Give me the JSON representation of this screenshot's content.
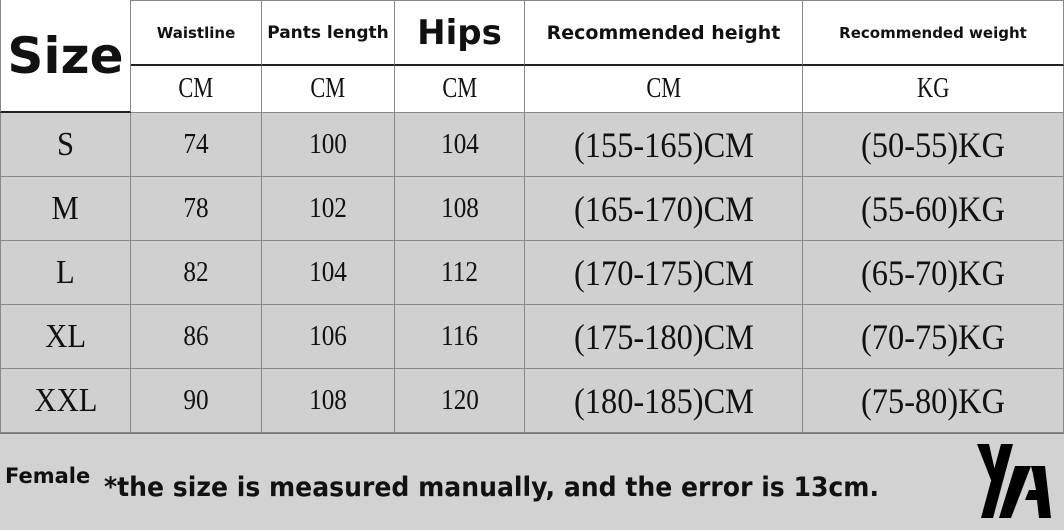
{
  "table": {
    "size_header": "Size",
    "headers": [
      "Waistline",
      "Pants length",
      "Hips",
      "Recommended height",
      "Recommended weight"
    ],
    "units": [
      "CM",
      "CM",
      "CM",
      "CM",
      "KG"
    ],
    "rows": [
      {
        "size": "S",
        "waistline": "74",
        "pants_length": "100",
        "hips": "104",
        "height": "(155-165)CM",
        "weight": "(50-55)KG"
      },
      {
        "size": "M",
        "waistline": "78",
        "pants_length": "102",
        "hips": "108",
        "height": "(165-170)CM",
        "weight": "(55-60)KG"
      },
      {
        "size": "L",
        "waistline": "82",
        "pants_length": "104",
        "hips": "112",
        "height": "(170-175)CM",
        "weight": "(65-70)KG"
      },
      {
        "size": "XL",
        "waistline": "86",
        "pants_length": "106",
        "hips": "116",
        "height": "(175-180)CM",
        "weight": "(70-75)KG"
      },
      {
        "size": "XXL",
        "waistline": "90",
        "pants_length": "108",
        "hips": "120",
        "height": "(180-185)CM",
        "weight": "(75-80)KG"
      }
    ]
  },
  "footer": {
    "gender": "Female",
    "note": "*the size is measured manually, and the error is 13cm.",
    "logo_text": "YA"
  },
  "colors": {
    "row_bg": "#d0d0d0",
    "header_bg": "#ffffff",
    "footer_bg": "#d2d2d2"
  }
}
